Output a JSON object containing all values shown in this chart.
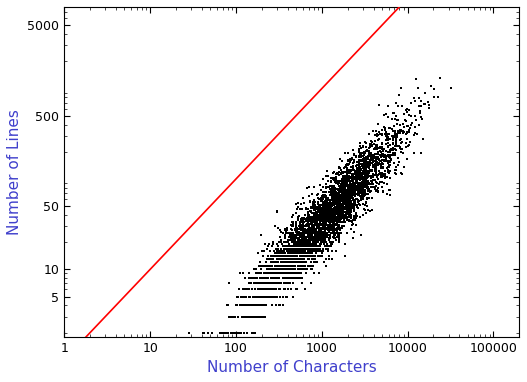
{
  "xlabel": "Number of Characters",
  "ylabel": "Number of Lines",
  "xlim": [
    1,
    200000
  ],
  "ylim": [
    1.8,
    8000
  ],
  "xticks": [
    1,
    10,
    100,
    1000,
    10000,
    100000
  ],
  "xtick_labels": [
    "1",
    "10",
    "100",
    "1000",
    "10000",
    "100000"
  ],
  "yticks": [
    5,
    10,
    50,
    500,
    5000
  ],
  "ytick_labels": [
    "5",
    "10",
    "50",
    "500",
    "5000"
  ],
  "line_color": "#FF0000",
  "point_color": "#000000",
  "point_size": 1.8,
  "point_alpha": 1.0,
  "background_color": "#FFFFFF",
  "axis_label_color": "#4040CC",
  "tick_label_color": "#000000",
  "seed": 42,
  "n_points": 4000,
  "log_char_mean": 7.0,
  "log_char_std": 1.0,
  "log_line_mean": 3.6,
  "log_line_std": 1.1,
  "correlation": 0.93,
  "xlabel_fontsize": 11,
  "ylabel_fontsize": 11,
  "tick_fontsize": 9
}
